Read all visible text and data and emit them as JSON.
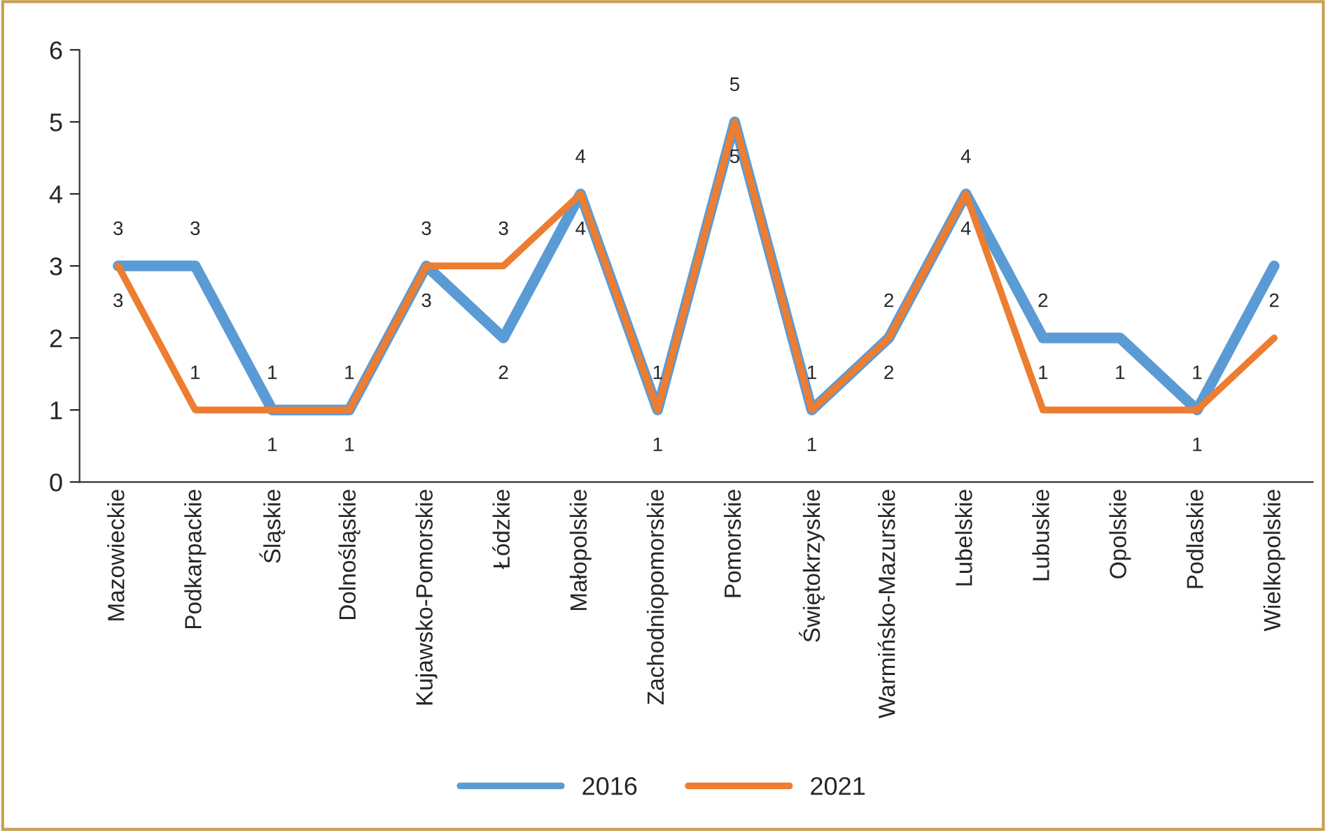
{
  "chart_data": {
    "type": "line",
    "categories": [
      "Mazowieckie",
      "Podkarpackie",
      "Śląskie",
      "Dolnośląskie",
      "Kujawsko-Pomorskie",
      "Łódzkie",
      "Małopolskie",
      "Zachodniopomorskie",
      "Pomorskie",
      "Świętokrzyskie",
      "Warmińsko-Mazurskie",
      "Lubelskie",
      "Lubuskie",
      "Opolskie",
      "Podlaskie",
      "Wielkopolskie"
    ],
    "series": [
      {
        "name": "2016",
        "color": "#5b9bd5",
        "values": [
          3,
          3,
          1,
          1,
          3,
          2,
          4,
          1,
          5,
          1,
          2,
          4,
          2,
          2,
          1,
          3
        ],
        "value_labels": [
          "3",
          "3",
          "1",
          "1",
          "3",
          "2",
          "4",
          "1",
          "5",
          "1",
          "2",
          "4",
          "2",
          null,
          "1",
          null
        ]
      },
      {
        "name": "2021",
        "color": "#ed7d31",
        "values": [
          3,
          1,
          1,
          1,
          3,
          3,
          4,
          1,
          5,
          1,
          2,
          4,
          1,
          1,
          1,
          2
        ],
        "value_labels": [
          "3",
          "1",
          "1",
          "1",
          "3",
          "3",
          "4",
          "1",
          "5",
          "1",
          "2",
          "4",
          "1",
          "1",
          "1",
          "2"
        ]
      }
    ],
    "ylim": [
      0,
      6
    ],
    "yticks": [
      0,
      1,
      2,
      3,
      4,
      5,
      6
    ],
    "grid": false,
    "legend": "bottom",
    "marker": "none",
    "line_style": "solid"
  }
}
